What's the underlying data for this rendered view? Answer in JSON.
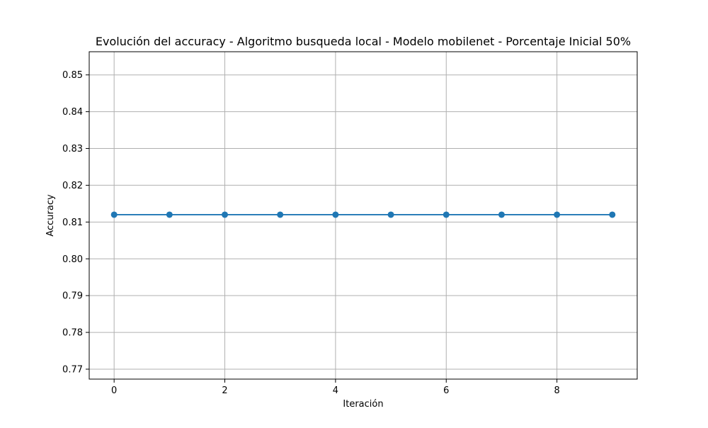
{
  "chart_data": {
    "type": "line",
    "title": "Evolución del accuracy - Algoritmo busqueda local - Modelo mobilenet - Porcentaje Inicial 50%",
    "xlabel": "Iteración",
    "ylabel": "Accuracy",
    "x": [
      0,
      1,
      2,
      3,
      4,
      5,
      6,
      7,
      8,
      9
    ],
    "series": [
      {
        "values": [
          0.812,
          0.812,
          0.812,
          0.812,
          0.812,
          0.812,
          0.812,
          0.812,
          0.812,
          0.812
        ]
      }
    ],
    "xlim": [
      -0.45,
      9.45
    ],
    "ylim": [
      0.7673,
      0.8563
    ],
    "xticks": [
      0,
      2,
      4,
      6,
      8
    ],
    "xtick_labels": [
      "0",
      "2",
      "4",
      "6",
      "8"
    ],
    "yticks": [
      0.77,
      0.78,
      0.79,
      0.8,
      0.81,
      0.82,
      0.83,
      0.84,
      0.85
    ],
    "ytick_labels": [
      "0.77",
      "0.78",
      "0.79",
      "0.80",
      "0.81",
      "0.82",
      "0.83",
      "0.84",
      "0.85"
    ],
    "grid": true,
    "line_color": "#1f77b4",
    "grid_color": "#b0b0b0",
    "marker": "circle"
  }
}
